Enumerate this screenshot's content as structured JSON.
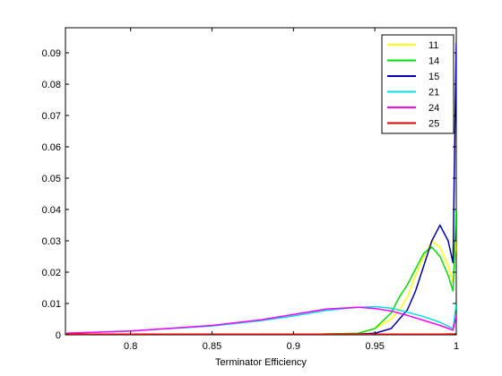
{
  "chart_data": {
    "type": "line",
    "title": "",
    "xlabel": "Terminator Efficiency",
    "ylabel": "",
    "xlim": [
      0.76,
      1.0
    ],
    "ylim": [
      0,
      0.098
    ],
    "xticks": [
      0.8,
      0.85,
      0.9,
      0.95,
      1.0
    ],
    "xtick_labels": [
      "0.8",
      "0.85",
      "0.9",
      "0.95",
      "1"
    ],
    "yticks": [
      0,
      0.01,
      0.02,
      0.03,
      0.04,
      0.05,
      0.06,
      0.07,
      0.08,
      0.09
    ],
    "ytick_labels": [
      "0",
      "0.01",
      "0.02",
      "0.03",
      "0.04",
      "0.05",
      "0.06",
      "0.07",
      "0.08",
      "0.09"
    ],
    "grid": false,
    "legend_position": "top-right",
    "series": [
      {
        "name": "11",
        "color": "#ffff00",
        "x": [
          0.76,
          0.9,
          0.94,
          0.95,
          0.96,
          0.965,
          0.97,
          0.975,
          0.98,
          0.985,
          0.99,
          0.995,
          0.998,
          1.0
        ],
        "y": [
          0,
          0,
          0.0005,
          0.002,
          0.005,
          0.008,
          0.012,
          0.019,
          0.025,
          0.03,
          0.028,
          0.022,
          0.017,
          0.03
        ]
      },
      {
        "name": "14",
        "color": "#00e000",
        "x": [
          0.76,
          0.9,
          0.94,
          0.95,
          0.96,
          0.965,
          0.97,
          0.975,
          0.98,
          0.985,
          0.99,
          0.995,
          0.998,
          1.0
        ],
        "y": [
          0,
          0,
          0.0005,
          0.002,
          0.007,
          0.012,
          0.016,
          0.021,
          0.026,
          0.028,
          0.025,
          0.019,
          0.014,
          0.04
        ]
      },
      {
        "name": "15",
        "color": "#0000b0",
        "x": [
          0.76,
          0.93,
          0.95,
          0.96,
          0.97,
          0.975,
          0.98,
          0.985,
          0.99,
          0.995,
          0.998,
          0.999,
          1.0
        ],
        "y": [
          0,
          0,
          0.0005,
          0.002,
          0.008,
          0.014,
          0.022,
          0.03,
          0.035,
          0.03,
          0.023,
          0.06,
          0.093
        ]
      },
      {
        "name": "21",
        "color": "#00e0e0",
        "x": [
          0.76,
          0.8,
          0.85,
          0.88,
          0.9,
          0.92,
          0.94,
          0.95,
          0.96,
          0.97,
          0.98,
          0.99,
          0.998,
          1.0
        ],
        "y": [
          0.0005,
          0.0012,
          0.0028,
          0.0045,
          0.006,
          0.0078,
          0.0088,
          0.009,
          0.0085,
          0.0072,
          0.0058,
          0.004,
          0.002,
          0.01
        ]
      },
      {
        "name": "24",
        "color": "#ff00ff",
        "x": [
          0.76,
          0.8,
          0.85,
          0.88,
          0.9,
          0.92,
          0.94,
          0.95,
          0.96,
          0.97,
          0.98,
          0.99,
          0.998,
          1.0
        ],
        "y": [
          0.0005,
          0.0012,
          0.003,
          0.0048,
          0.0065,
          0.0082,
          0.0088,
          0.0084,
          0.0076,
          0.0062,
          0.0046,
          0.003,
          0.0015,
          0.006
        ]
      },
      {
        "name": "25",
        "color": "#e00000",
        "x": [
          0.76,
          0.9,
          0.95,
          0.99,
          1.0
        ],
        "y": [
          0.0002,
          0.0002,
          0.0002,
          0.0002,
          0.0003
        ]
      }
    ]
  }
}
